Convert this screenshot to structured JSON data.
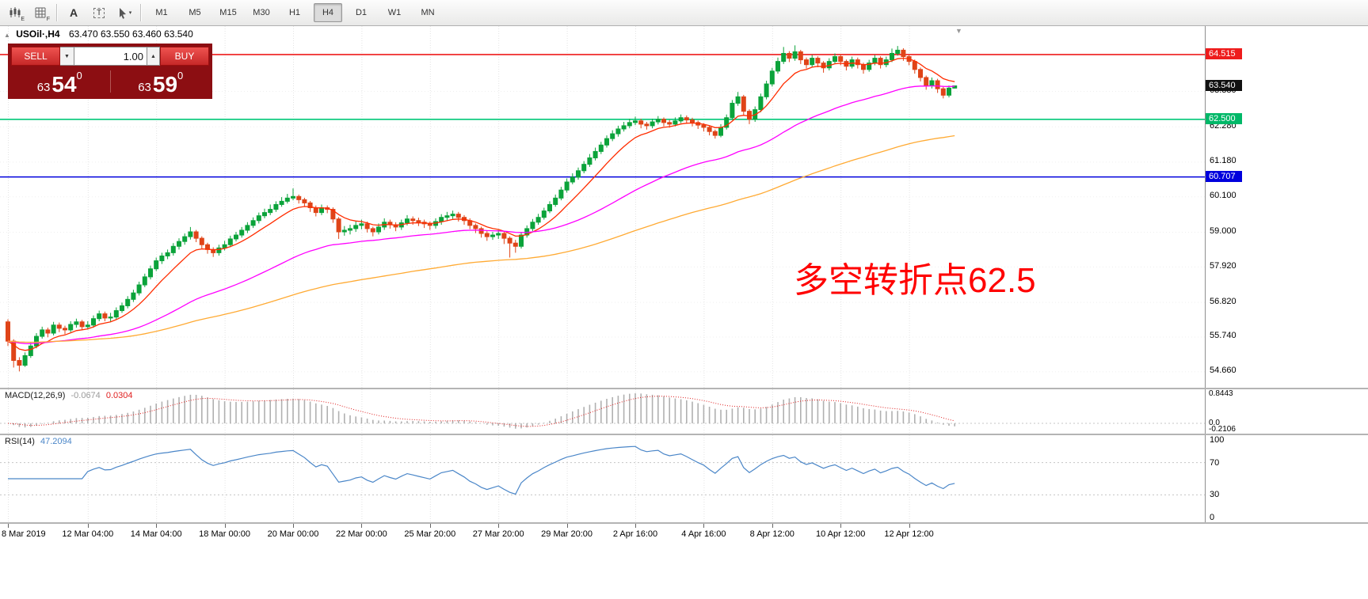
{
  "toolbar": {
    "icons": [
      {
        "name": "candlesticks-icon",
        "badge": "E"
      },
      {
        "name": "grid-icon",
        "badge": "F"
      },
      {
        "name": "text-tool-icon",
        "label": "A"
      },
      {
        "name": "label-tool-icon",
        "label": "T"
      },
      {
        "name": "cursor-tool-icon"
      }
    ],
    "timeframes": [
      {
        "label": "M1",
        "active": false
      },
      {
        "label": "M5",
        "active": false
      },
      {
        "label": "M15",
        "active": false
      },
      {
        "label": "M30",
        "active": false
      },
      {
        "label": "H1",
        "active": false
      },
      {
        "label": "H4",
        "active": true
      },
      {
        "label": "D1",
        "active": false
      },
      {
        "label": "W1",
        "active": false
      },
      {
        "label": "MN",
        "active": false
      }
    ]
  },
  "icons": {
    "dropdown_down": "▼",
    "stepper_up": "▲",
    "collapse": "▲",
    "scroll_marker": "▼",
    "chevron_down": "▾"
  },
  "chart": {
    "header": {
      "title": "USOil·,H4",
      "ohlc": "63.470 63.550 63.460 63.540"
    },
    "trade_panel": {
      "sell_label": "SELL",
      "buy_label": "BUY",
      "volume": "1.00",
      "bid": {
        "prefix": "63",
        "big": "54",
        "sup": "0"
      },
      "ask": {
        "prefix": "63",
        "big": "59",
        "sup": "0"
      }
    },
    "annotation": {
      "text": "多空转折点62.5",
      "color": "#ff0000"
    },
    "price_scale": {
      "grid_labels": [
        63.38,
        62.28,
        61.18,
        60.1,
        59.0,
        57.92,
        56.82,
        55.74,
        54.66
      ],
      "badges": [
        {
          "text": "64.515",
          "price": 64.515,
          "bg": "#ee1c1c",
          "fg": "#ffffff"
        },
        {
          "text": "63.540",
          "price": 63.54,
          "bg": "#111111",
          "fg": "#ffffff"
        },
        {
          "text": "62.500",
          "price": 62.5,
          "bg": "#00b868",
          "fg": "#ffffff"
        },
        {
          "text": "60.707",
          "price": 60.707,
          "bg": "#0000dd",
          "fg": "#ffffff"
        }
      ]
    }
  },
  "macd": {
    "label": "MACD(12,26,9)",
    "main_value": "-0.0674",
    "signal_value": "0.0304",
    "scale_labels": [
      "0.8443",
      "0.0",
      "-0.2106"
    ],
    "ylim": [
      -0.2106,
      0.8443
    ],
    "histogram_color": "#b0b0b0",
    "signal_color": "#e02020"
  },
  "rsi": {
    "label": "RSI(14)",
    "value": "47.2094",
    "scale_labels": [
      "100",
      "70",
      "30",
      "0"
    ],
    "levels": [
      70,
      30
    ],
    "ylim": [
      0,
      100
    ],
    "line_color": "#4a86c8"
  },
  "time_axis": {
    "ticks": [
      {
        "index": 0,
        "label": "8 Mar 2019"
      },
      {
        "index": 14,
        "label": "12 Mar 04:00"
      },
      {
        "index": 26,
        "label": "14 Mar 04:00"
      },
      {
        "index": 38,
        "label": "18 Mar 00:00"
      },
      {
        "index": 50,
        "label": "20 Mar 00:00"
      },
      {
        "index": 62,
        "label": "22 Mar 00:00"
      },
      {
        "index": 74,
        "label": "25 Mar 20:00"
      },
      {
        "index": 86,
        "label": "27 Mar 20:00"
      },
      {
        "index": 98,
        "label": "29 Mar 20:00"
      },
      {
        "index": 110,
        "label": "2 Apr 16:00"
      },
      {
        "index": 122,
        "label": "4 Apr 16:00"
      },
      {
        "index": 134,
        "label": "8 Apr 12:00"
      },
      {
        "index": 146,
        "label": "10 Apr 12:00"
      },
      {
        "index": 158,
        "label": "12 Apr 12:00"
      }
    ]
  },
  "chart_data": {
    "type": "candlestick",
    "symbol": "USOil",
    "timeframe": "H4",
    "current_bar": {
      "open": 63.47,
      "high": 63.55,
      "low": 63.46,
      "close": 63.54
    },
    "bid": "63.540",
    "ask": "63.590",
    "ylim": [
      54.25,
      65.3
    ],
    "up_color": "#0ba33a",
    "down_color": "#df4418",
    "hlines": [
      {
        "price": 64.515,
        "color": "#ee1c1c",
        "width": 1.6
      },
      {
        "price": 62.5,
        "color": "#00c878",
        "width": 1.6
      },
      {
        "price": 60.707,
        "color": "#0000dd",
        "width": 1.6
      }
    ],
    "moving_averages": [
      {
        "name": "fast-ma",
        "period": 9,
        "color": "#ff2d00"
      },
      {
        "name": "mid-ma",
        "period": 45,
        "color": "#ff00ff"
      },
      {
        "name": "slow-ma",
        "period": 110,
        "color": "#ffaa33"
      }
    ],
    "candles": [
      [
        56.2,
        56.28,
        55.45,
        55.6
      ],
      [
        55.6,
        55.66,
        54.78,
        55.0
      ],
      [
        55.0,
        55.1,
        54.66,
        54.85
      ],
      [
        54.85,
        55.25,
        54.8,
        55.15
      ],
      [
        55.15,
        55.55,
        55.08,
        55.45
      ],
      [
        55.45,
        55.85,
        55.38,
        55.75
      ],
      [
        55.75,
        56.05,
        55.68,
        55.95
      ],
      [
        55.95,
        56.02,
        55.72,
        55.85
      ],
      [
        55.85,
        56.2,
        55.78,
        56.1
      ],
      [
        56.1,
        56.18,
        55.88,
        56.0
      ],
      [
        56.0,
        56.08,
        55.82,
        55.95
      ],
      [
        55.95,
        56.22,
        55.88,
        56.12
      ],
      [
        56.12,
        56.3,
        56.02,
        56.2
      ],
      [
        56.2,
        56.26,
        55.95,
        56.05
      ],
      [
        56.05,
        56.22,
        55.96,
        56.1
      ],
      [
        56.1,
        56.4,
        56.02,
        56.3
      ],
      [
        56.3,
        56.55,
        56.22,
        56.45
      ],
      [
        56.45,
        56.52,
        56.22,
        56.32
      ],
      [
        56.32,
        56.48,
        56.2,
        56.35
      ],
      [
        56.35,
        56.65,
        56.28,
        56.55
      ],
      [
        56.55,
        56.8,
        56.48,
        56.7
      ],
      [
        56.7,
        57.0,
        56.62,
        56.9
      ],
      [
        56.9,
        57.2,
        56.82,
        57.1
      ],
      [
        57.1,
        57.45,
        57.02,
        57.35
      ],
      [
        57.35,
        57.7,
        57.28,
        57.6
      ],
      [
        57.6,
        57.95,
        57.52,
        57.85
      ],
      [
        57.85,
        58.2,
        57.78,
        58.1
      ],
      [
        58.1,
        58.35,
        58.0,
        58.25
      ],
      [
        58.25,
        58.45,
        58.15,
        58.35
      ],
      [
        58.35,
        58.65,
        58.26,
        58.55
      ],
      [
        58.55,
        58.8,
        58.45,
        58.7
      ],
      [
        58.7,
        58.95,
        58.6,
        58.85
      ],
      [
        58.85,
        59.15,
        58.76,
        59.0
      ],
      [
        59.0,
        59.06,
        58.68,
        58.8
      ],
      [
        58.8,
        58.86,
        58.48,
        58.6
      ],
      [
        58.6,
        58.66,
        58.32,
        58.45
      ],
      [
        58.45,
        58.52,
        58.22,
        58.35
      ],
      [
        58.35,
        58.6,
        58.26,
        58.5
      ],
      [
        58.5,
        58.72,
        58.42,
        58.6
      ],
      [
        58.6,
        58.88,
        58.52,
        58.78
      ],
      [
        58.78,
        59.0,
        58.7,
        58.9
      ],
      [
        58.9,
        59.15,
        58.82,
        59.05
      ],
      [
        59.05,
        59.3,
        58.96,
        59.2
      ],
      [
        59.2,
        59.45,
        59.12,
        59.35
      ],
      [
        59.35,
        59.6,
        59.26,
        59.5
      ],
      [
        59.5,
        59.72,
        59.42,
        59.6
      ],
      [
        59.6,
        59.85,
        59.52,
        59.7
      ],
      [
        59.7,
        59.95,
        59.62,
        59.85
      ],
      [
        59.85,
        60.08,
        59.78,
        59.95
      ],
      [
        59.95,
        60.18,
        59.88,
        60.05
      ],
      [
        60.05,
        60.35,
        59.98,
        60.1
      ],
      [
        60.1,
        60.16,
        59.88,
        60.0
      ],
      [
        60.0,
        60.06,
        59.78,
        59.9
      ],
      [
        59.9,
        59.96,
        59.62,
        59.75
      ],
      [
        59.75,
        59.82,
        59.48,
        59.6
      ],
      [
        59.6,
        59.85,
        59.52,
        59.75
      ],
      [
        59.75,
        59.82,
        59.58,
        59.7
      ],
      [
        59.7,
        59.76,
        59.28,
        59.4
      ],
      [
        59.4,
        59.46,
        58.78,
        59.0
      ],
      [
        59.0,
        59.18,
        58.88,
        59.05
      ],
      [
        59.05,
        59.22,
        58.92,
        59.1
      ],
      [
        59.1,
        59.32,
        59.0,
        59.2
      ],
      [
        59.2,
        59.38,
        59.08,
        59.25
      ],
      [
        59.25,
        59.32,
        58.98,
        59.1
      ],
      [
        59.1,
        59.16,
        58.86,
        59.0
      ],
      [
        59.0,
        59.26,
        58.92,
        59.15
      ],
      [
        59.15,
        59.42,
        59.06,
        59.3
      ],
      [
        59.3,
        59.38,
        59.1,
        59.22
      ],
      [
        59.22,
        59.3,
        59.02,
        59.15
      ],
      [
        59.15,
        59.38,
        59.06,
        59.28
      ],
      [
        59.28,
        59.52,
        59.2,
        59.4
      ],
      [
        59.4,
        59.48,
        59.22,
        59.35
      ],
      [
        59.35,
        59.44,
        59.18,
        59.3
      ],
      [
        59.3,
        59.38,
        59.12,
        59.25
      ],
      [
        59.25,
        59.32,
        59.06,
        59.2
      ],
      [
        59.2,
        59.42,
        59.1,
        59.32
      ],
      [
        59.32,
        59.55,
        59.22,
        59.45
      ],
      [
        59.45,
        59.62,
        59.35,
        59.5
      ],
      [
        59.5,
        59.66,
        59.4,
        59.55
      ],
      [
        59.55,
        59.62,
        59.32,
        59.45
      ],
      [
        59.45,
        59.52,
        59.22,
        59.35
      ],
      [
        59.35,
        59.42,
        59.08,
        59.2
      ],
      [
        59.2,
        59.26,
        58.96,
        59.1
      ],
      [
        59.1,
        59.16,
        58.82,
        58.95
      ],
      [
        58.95,
        59.02,
        58.72,
        58.85
      ],
      [
        58.85,
        59.0,
        58.75,
        58.9
      ],
      [
        58.9,
        59.06,
        58.78,
        58.95
      ],
      [
        58.95,
        59.02,
        58.62,
        58.8
      ],
      [
        58.8,
        58.86,
        58.2,
        58.65
      ],
      [
        58.65,
        58.75,
        58.35,
        58.55
      ],
      [
        58.55,
        59.0,
        58.48,
        58.9
      ],
      [
        58.9,
        59.2,
        58.82,
        59.1
      ],
      [
        59.1,
        59.4,
        59.02,
        59.3
      ],
      [
        59.3,
        59.56,
        59.22,
        59.45
      ],
      [
        59.45,
        59.75,
        59.38,
        59.65
      ],
      [
        59.65,
        59.95,
        59.58,
        59.85
      ],
      [
        59.85,
        60.16,
        59.78,
        60.05
      ],
      [
        60.05,
        60.4,
        59.98,
        60.3
      ],
      [
        60.3,
        60.66,
        60.22,
        60.55
      ],
      [
        60.55,
        60.82,
        60.48,
        60.7
      ],
      [
        60.7,
        61.0,
        60.62,
        60.9
      ],
      [
        60.9,
        61.2,
        60.82,
        61.1
      ],
      [
        61.1,
        61.42,
        61.02,
        61.3
      ],
      [
        61.3,
        61.62,
        61.22,
        61.5
      ],
      [
        61.5,
        61.8,
        61.42,
        61.7
      ],
      [
        61.7,
        62.0,
        61.62,
        61.9
      ],
      [
        61.9,
        62.16,
        61.82,
        62.05
      ],
      [
        62.05,
        62.3,
        61.96,
        62.2
      ],
      [
        62.2,
        62.42,
        62.12,
        62.3
      ],
      [
        62.3,
        62.52,
        62.22,
        62.4
      ],
      [
        62.4,
        62.58,
        62.32,
        62.45
      ],
      [
        62.45,
        62.52,
        62.22,
        62.35
      ],
      [
        62.35,
        62.42,
        62.18,
        62.3
      ],
      [
        62.3,
        62.52,
        62.22,
        62.42
      ],
      [
        62.42,
        62.6,
        62.34,
        62.5
      ],
      [
        62.5,
        62.56,
        62.28,
        62.4
      ],
      [
        62.4,
        62.48,
        62.24,
        62.35
      ],
      [
        62.35,
        62.56,
        62.28,
        62.45
      ],
      [
        62.45,
        62.65,
        62.38,
        62.55
      ],
      [
        62.55,
        62.62,
        62.36,
        62.48
      ],
      [
        62.48,
        62.55,
        62.28,
        62.4
      ],
      [
        62.4,
        62.46,
        62.2,
        62.32
      ],
      [
        62.32,
        62.38,
        62.12,
        62.25
      ],
      [
        62.25,
        62.3,
        62.0,
        62.12
      ],
      [
        62.12,
        62.18,
        61.9,
        62.0
      ],
      [
        62.0,
        62.35,
        61.94,
        62.25
      ],
      [
        62.25,
        62.65,
        62.18,
        62.55
      ],
      [
        62.55,
        63.1,
        62.48,
        63.0
      ],
      [
        63.0,
        63.35,
        62.92,
        63.2
      ],
      [
        63.2,
        63.26,
        62.62,
        62.75
      ],
      [
        62.75,
        62.81,
        62.35,
        62.5
      ],
      [
        62.5,
        62.9,
        62.42,
        62.8
      ],
      [
        62.8,
        63.3,
        62.72,
        63.2
      ],
      [
        63.2,
        63.7,
        63.12,
        63.6
      ],
      [
        63.6,
        64.1,
        63.52,
        64.0
      ],
      [
        64.0,
        64.42,
        63.92,
        64.3
      ],
      [
        64.3,
        64.75,
        64.22,
        64.55
      ],
      [
        64.55,
        64.62,
        64.28,
        64.4
      ],
      [
        64.4,
        64.8,
        64.32,
        64.6
      ],
      [
        64.6,
        64.66,
        64.22,
        64.35
      ],
      [
        64.35,
        64.42,
        64.08,
        64.2
      ],
      [
        64.2,
        64.5,
        64.12,
        64.4
      ],
      [
        64.4,
        64.46,
        64.12,
        64.25
      ],
      [
        64.25,
        64.31,
        63.95,
        64.1
      ],
      [
        64.1,
        64.4,
        64.02,
        64.3
      ],
      [
        64.3,
        64.55,
        64.22,
        64.45
      ],
      [
        64.45,
        64.52,
        64.18,
        64.3
      ],
      [
        64.3,
        64.36,
        64.02,
        64.15
      ],
      [
        64.15,
        64.45,
        64.08,
        64.35
      ],
      [
        64.35,
        64.42,
        64.08,
        64.2
      ],
      [
        64.2,
        64.26,
        63.92,
        64.05
      ],
      [
        64.05,
        64.35,
        63.98,
        64.25
      ],
      [
        64.25,
        64.5,
        64.18,
        64.4
      ],
      [
        64.4,
        64.46,
        64.08,
        64.2
      ],
      [
        64.2,
        64.45,
        64.12,
        64.35
      ],
      [
        64.35,
        64.7,
        64.28,
        64.55
      ],
      [
        64.55,
        64.78,
        64.48,
        64.65
      ],
      [
        64.65,
        64.71,
        64.32,
        64.45
      ],
      [
        64.45,
        64.52,
        64.18,
        64.3
      ],
      [
        64.3,
        64.36,
        63.92,
        64.05
      ],
      [
        64.05,
        64.11,
        63.68,
        63.8
      ],
      [
        63.8,
        63.86,
        63.42,
        63.55
      ],
      [
        63.55,
        63.8,
        63.46,
        63.7
      ],
      [
        63.7,
        63.76,
        63.32,
        63.45
      ],
      [
        63.45,
        63.51,
        63.15,
        63.25
      ],
      [
        63.25,
        63.55,
        63.18,
        63.47
      ],
      [
        63.47,
        63.55,
        63.46,
        63.54
      ]
    ]
  }
}
